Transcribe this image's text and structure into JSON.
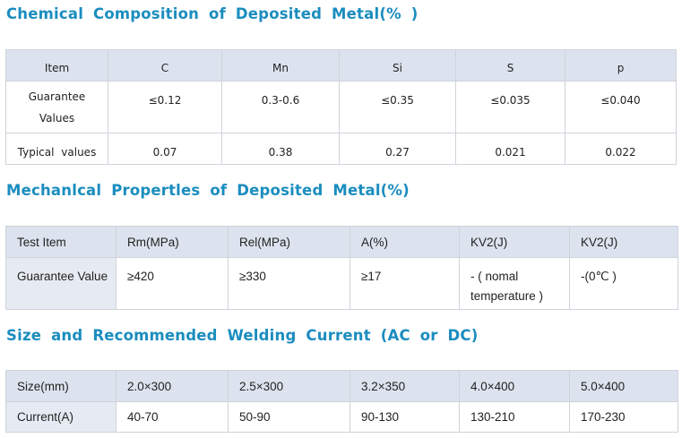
{
  "sections": {
    "chemical": {
      "title": "Chemical Composition of Deposited Metal(% )",
      "headers": [
        "Item",
        "C",
        "Mn",
        "Si",
        "S",
        "p"
      ],
      "rows": [
        [
          "Guarantee Values",
          "≤0.12",
          "0.3-0.6",
          "≤0.35",
          "≤0.035",
          "≤0.040"
        ],
        [
          "Typical values",
          "0.07",
          "0.38",
          "0.27",
          "0.021",
          "0.022"
        ]
      ]
    },
    "mechanical": {
      "title": "Mechanlcal Propertles of Deposited Metal(%)",
      "headers": [
        "Test Item",
        "Rm(MPa)",
        "Rel(MPa)",
        "A(%)",
        "KV2(J)",
        "KV2(J)"
      ],
      "rows": [
        [
          "Guarantee Value",
          "≥420",
          "≥330",
          "≥17",
          "- ( nomal temperature )",
          "-(0℃ )"
        ]
      ]
    },
    "size": {
      "title": "Size and Recommended Welding Current (AC or DC)",
      "headers": [
        "Size(mm)",
        "2.0×300",
        "2.5×300",
        "3.2×350",
        "4.0×400",
        "5.0×400"
      ],
      "rows": [
        [
          "Current(A)",
          "40-70",
          "50-90",
          "90-130",
          "130-210",
          "170-230"
        ]
      ]
    }
  },
  "colors": {
    "title": "#1b8dbf",
    "header_bg": "#dce3ee",
    "border": "#cfd3da"
  }
}
